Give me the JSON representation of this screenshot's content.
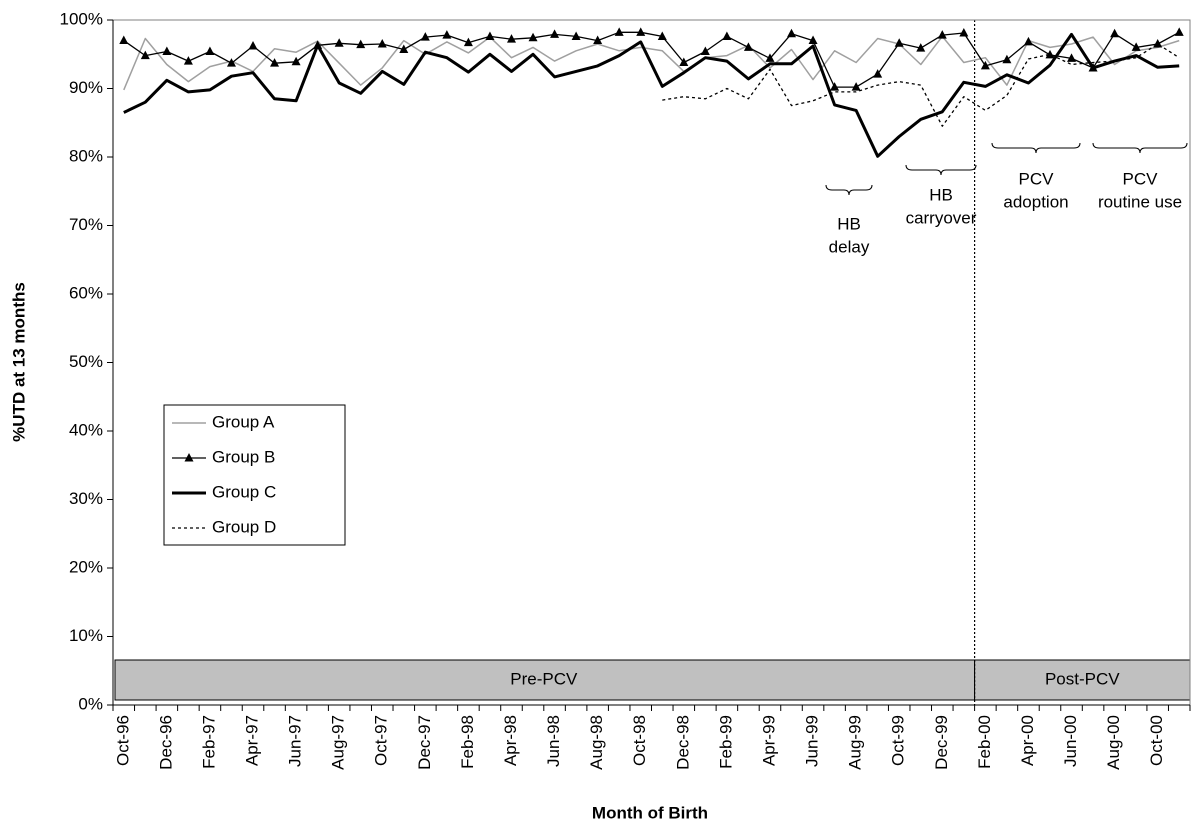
{
  "chart_data": {
    "type": "line",
    "ylabel": "%UTD at 13 months",
    "xlabel": "Month of Birth",
    "categories": [
      "Oct-96",
      null,
      "Dec-96",
      null,
      "Feb-97",
      null,
      "Apr-97",
      null,
      "Jun-97",
      null,
      "Aug-97",
      null,
      "Oct-97",
      null,
      "Dec-97",
      null,
      "Feb-98",
      null,
      "Apr-98",
      null,
      "Jun-98",
      null,
      "Aug-98",
      null,
      "Oct-98",
      null,
      "Dec-98",
      null,
      "Feb-99",
      null,
      "Apr-99",
      null,
      "Jun-99",
      null,
      "Aug-99",
      null,
      "Oct-99",
      null,
      "Dec-99",
      null,
      "Feb-00",
      null,
      "Apr-00",
      null,
      "Jun-00",
      null,
      "Aug-00",
      null,
      "Oct-00",
      null
    ],
    "series": [
      {
        "name": "Group A",
        "color": "#a0a0a0",
        "width": 1.5,
        "values": [
          89.8,
          97.3,
          93.5,
          91,
          93.2,
          94,
          92.5,
          95.8,
          95.3,
          96.9,
          93.7,
          90.5,
          93,
          97,
          95,
          96.8,
          95.2,
          97.5,
          94.5,
          96,
          94,
          95.5,
          96.5,
          95.5,
          96,
          95.5,
          92.5,
          94.5,
          94.8,
          96.3,
          93,
          95.7,
          91.3,
          95.5,
          93.8,
          97.3,
          96.5,
          93.5,
          97.6,
          93.8,
          94.5,
          90.5,
          97,
          96,
          96.5,
          97.5,
          93.5,
          95.5,
          96,
          97
        ]
      },
      {
        "name": "Group B",
        "color": "#000000",
        "width": 1.3,
        "marker": "triangle",
        "values": [
          97,
          94.8,
          95.4,
          94,
          95.4,
          93.7,
          96.2,
          93.7,
          93.9,
          96.3,
          96.6,
          96.4,
          96.5,
          95.7,
          97.5,
          97.8,
          96.7,
          97.6,
          97.2,
          97.4,
          97.9,
          97.6,
          97,
          98.2,
          98.2,
          97.6,
          93.8,
          95.4,
          97.6,
          96,
          94.4,
          98,
          97,
          90.2,
          90.2,
          92.1,
          96.6,
          95.9,
          97.8,
          98.1,
          93.3,
          94.2,
          96.8,
          94.9,
          94.4,
          93,
          98,
          96,
          96.5,
          98.2
        ]
      },
      {
        "name": "Group C",
        "color": "#000000",
        "width": 3,
        "values": [
          86.5,
          88,
          91.2,
          89.5,
          89.8,
          91.8,
          92.3,
          88.5,
          88.2,
          96.3,
          90.8,
          89.3,
          92.5,
          90.6,
          95.3,
          94.5,
          92.4,
          95,
          92.5,
          95,
          91.7,
          92.5,
          93.3,
          94.8,
          96.8,
          90.3,
          92.3,
          94.5,
          94,
          91.4,
          93.6,
          93.6,
          96.2,
          87.6,
          86.8,
          80.1,
          83,
          85.5,
          86.6,
          90.9,
          90.3,
          92,
          90.8,
          93.4,
          97.9,
          93,
          94,
          94.8,
          93.1,
          93.3
        ]
      },
      {
        "name": "Group D",
        "color": "#000000",
        "width": 1.3,
        "dash": true,
        "values": [
          null,
          null,
          null,
          null,
          null,
          null,
          null,
          null,
          null,
          null,
          null,
          null,
          null,
          null,
          null,
          null,
          null,
          null,
          null,
          null,
          null,
          null,
          null,
          null,
          null,
          88.3,
          88.8,
          88.5,
          90,
          88.5,
          92.8,
          87.5,
          88.2,
          89.5,
          89.5,
          90.5,
          91,
          90.5,
          84.5,
          88.8,
          86.8,
          89,
          94.3,
          95,
          93.5,
          93.8,
          94,
          94.5,
          96.5,
          94.5
        ]
      }
    ],
    "ylim": [
      0,
      100
    ],
    "yticks": [
      {
        "value": 0,
        "label": "0%"
      },
      {
        "value": 10,
        "label": "10%"
      },
      {
        "value": 20,
        "label": "20%"
      },
      {
        "value": 30,
        "label": "30%"
      },
      {
        "value": 40,
        "label": "40%"
      },
      {
        "value": 50,
        "label": "50%"
      },
      {
        "value": 60,
        "label": "60%"
      },
      {
        "value": 70,
        "label": "70%"
      },
      {
        "value": 80,
        "label": "80%"
      },
      {
        "value": 90,
        "label": "90%"
      },
      {
        "value": 100,
        "label": "100%"
      }
    ],
    "grid": false,
    "periods": [
      "Pre-PCV",
      "Post-PCV"
    ],
    "annotations": [
      [
        "HB",
        "delay"
      ],
      [
        "HB",
        "carryover"
      ],
      [
        "PCV",
        "adoption"
      ],
      [
        "PCV",
        "routine use"
      ]
    ]
  }
}
